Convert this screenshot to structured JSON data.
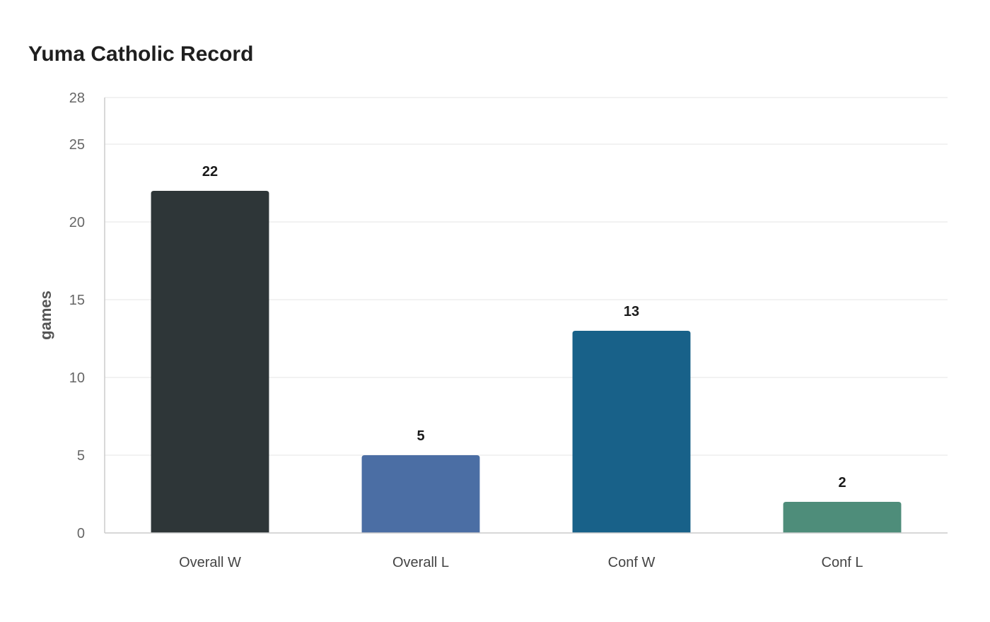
{
  "chart_data": {
    "type": "bar",
    "title": "Yuma Catholic Record",
    "xlabel": "",
    "ylabel": "games",
    "ylim": [
      0,
      28
    ],
    "yticks": [
      0,
      5,
      10,
      15,
      20,
      25,
      28
    ],
    "categories": [
      "Overall W",
      "Overall L",
      "Conf W",
      "Conf L"
    ],
    "values": [
      22,
      5,
      13,
      2
    ],
    "colors": [
      "#2e3638",
      "#4b6ea4",
      "#186189",
      "#4e8d7a"
    ],
    "grid": true,
    "legend": "none"
  }
}
